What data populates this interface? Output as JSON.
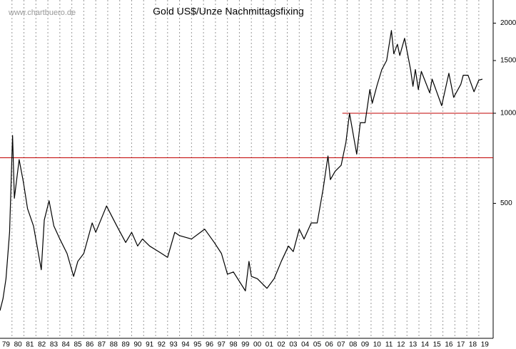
{
  "chart_data": {
    "type": "line",
    "title": "Gold US$/Unze Nachmittagsfixing",
    "source": "www.chartbuero.de",
    "log_scale": true,
    "color": "#000000",
    "grid": true,
    "x": [
      1979.0,
      1979.25,
      1979.5,
      1979.8,
      1980.05,
      1980.2,
      1980.6,
      1980.95,
      1981.3,
      1981.8,
      1982.45,
      1982.7,
      1983.1,
      1983.5,
      1984.0,
      1984.6,
      1985.15,
      1985.5,
      1986.0,
      1986.7,
      1987.0,
      1987.9,
      1988.5,
      1988.9,
      1989.5,
      1990.0,
      1990.5,
      1990.9,
      1991.5,
      1992.0,
      1992.5,
      1993.0,
      1993.6,
      1994.0,
      1995.0,
      1996.1,
      1996.9,
      1997.5,
      1998.0,
      1998.5,
      1999.5,
      1999.8,
      2000.0,
      2000.5,
      2001.3,
      2001.9,
      2002.5,
      2003.1,
      2003.5,
      2004.0,
      2004.4,
      2005.0,
      2005.5,
      2006.0,
      2006.4,
      2006.6,
      2007.0,
      2007.5,
      2007.9,
      2008.2,
      2008.8,
      2009.1,
      2009.5,
      2009.9,
      2010.1,
      2010.5,
      2010.9,
      2011.3,
      2011.7,
      2011.9,
      2012.2,
      2012.4,
      2012.8,
      2013.3,
      2013.5,
      2013.7,
      2013.95,
      2014.2,
      2014.9,
      2015.1,
      2015.9,
      2016.5,
      2016.9,
      2017.5,
      2017.7,
      2018.1,
      2018.6,
      2019.0,
      2019.3
    ],
    "values": [
      219,
      240,
      280,
      400,
      843,
      520,
      700,
      590,
      480,
      420,
      300,
      440,
      510,
      420,
      380,
      340,
      285,
      320,
      340,
      430,
      400,
      490,
      440,
      410,
      370,
      400,
      360,
      380,
      360,
      350,
      340,
      330,
      400,
      390,
      380,
      410,
      370,
      340,
      290,
      295,
      255,
      320,
      285,
      280,
      260,
      280,
      320,
      360,
      345,
      410,
      380,
      430,
      430,
      560,
      720,
      600,
      640,
      670,
      800,
      1000,
      730,
      930,
      930,
      1200,
      1080,
      1240,
      1400,
      1500,
      1890,
      1580,
      1700,
      1560,
      1780,
      1400,
      1230,
      1400,
      1200,
      1380,
      1170,
      1300,
      1060,
      1360,
      1130,
      1250,
      1340,
      1340,
      1180,
      1290,
      1300
    ],
    "xlim": [
      1979,
      2020.2
    ],
    "ylim": [
      177,
      2390
    ],
    "yticks": [
      500,
      1000,
      1500,
      2000
    ],
    "xticks": [
      {
        "value": 1979,
        "label": "79"
      },
      {
        "value": 1980,
        "label": "80"
      },
      {
        "value": 1981,
        "label": "81"
      },
      {
        "value": 1982,
        "label": "82"
      },
      {
        "value": 1983,
        "label": "83"
      },
      {
        "value": 1984,
        "label": "84"
      },
      {
        "value": 1985,
        "label": "85"
      },
      {
        "value": 1986,
        "label": "86"
      },
      {
        "value": 1987,
        "label": "87"
      },
      {
        "value": 1988,
        "label": "88"
      },
      {
        "value": 1989,
        "label": "89"
      },
      {
        "value": 1990,
        "label": "90"
      },
      {
        "value": 1991,
        "label": "91"
      },
      {
        "value": 1992,
        "label": "92"
      },
      {
        "value": 1993,
        "label": "93"
      },
      {
        "value": 1994,
        "label": "94"
      },
      {
        "value": 1995,
        "label": "95"
      },
      {
        "value": 1996,
        "label": "96"
      },
      {
        "value": 1997,
        "label": "97"
      },
      {
        "value": 1998,
        "label": "98"
      },
      {
        "value": 1999,
        "label": "99"
      },
      {
        "value": 2000,
        "label": "00"
      },
      {
        "value": 2001,
        "label": "01"
      },
      {
        "value": 2002,
        "label": "02"
      },
      {
        "value": 2003,
        "label": "03"
      },
      {
        "value": 2004,
        "label": "04"
      },
      {
        "value": 2005,
        "label": "05"
      },
      {
        "value": 2006,
        "label": "06"
      },
      {
        "value": 2007,
        "label": "07"
      },
      {
        "value": 2008,
        "label": "08"
      },
      {
        "value": 2009,
        "label": "09"
      },
      {
        "value": 2010,
        "label": "10"
      },
      {
        "value": 2011,
        "label": "11"
      },
      {
        "value": 2012,
        "label": "12"
      },
      {
        "value": 2013,
        "label": "13"
      },
      {
        "value": 2014,
        "label": "14"
      },
      {
        "value": 2015,
        "label": "15"
      },
      {
        "value": 2016,
        "label": "16"
      },
      {
        "value": 2017,
        "label": "17"
      },
      {
        "value": 2018,
        "label": "18"
      },
      {
        "value": 2019,
        "label": "19"
      }
    ],
    "reference_lines": [
      {
        "value": 710,
        "x_from": 1979,
        "color": "#c00000"
      },
      {
        "value": 1000,
        "x_from": 2007.6,
        "color": "#c00000"
      }
    ]
  }
}
